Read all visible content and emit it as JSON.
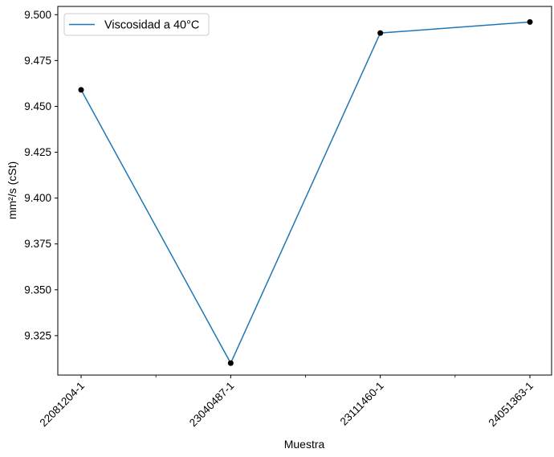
{
  "chart_data": {
    "type": "line",
    "categories": [
      "22081204-1",
      "23040487-1",
      "23111460-1",
      "24051363-1"
    ],
    "series": [
      {
        "name": "Viscosidad a 40°C",
        "values": [
          9.459,
          9.31,
          9.49,
          9.496
        ],
        "color": "#1f77b4",
        "marker_color": "#000000"
      }
    ],
    "xlabel": "Muestra",
    "ylabel": "mm²/s (cSt)",
    "ylim": [
      9.3035,
      9.5045
    ],
    "yticks": [
      9.325,
      9.35,
      9.375,
      9.4,
      9.425,
      9.45,
      9.475,
      9.5
    ],
    "ytick_labels": [
      "9.325",
      "9.350",
      "9.375",
      "9.400",
      "9.425",
      "9.450",
      "9.475",
      "9.500"
    ],
    "minor_xticks": [
      0.5,
      1.5,
      2.5
    ],
    "grid": false,
    "legend_position": "top-left"
  }
}
